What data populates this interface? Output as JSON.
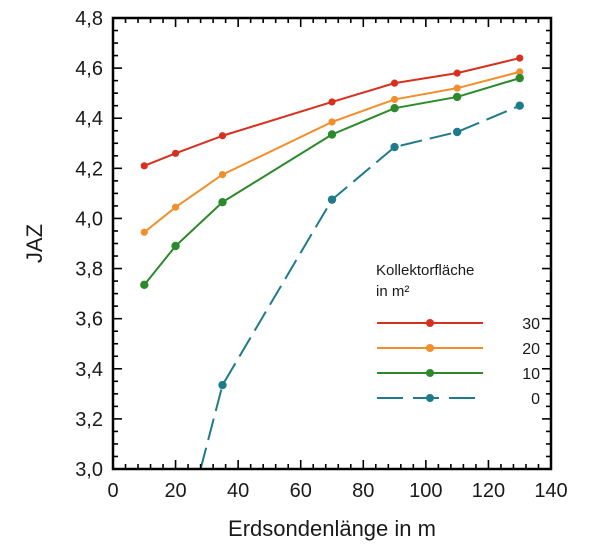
{
  "chart_data": {
    "type": "line",
    "xlabel": "Erdsondenlänge in m",
    "ylabel": "JAZ",
    "xlim": [
      0,
      140
    ],
    "ylim": [
      3.0,
      4.8
    ],
    "x_ticks": [
      0,
      20,
      40,
      60,
      80,
      100,
      120,
      140
    ],
    "x_tick_labels": [
      "0",
      "20",
      "40",
      "60",
      "80",
      "100",
      "120",
      "140"
    ],
    "y_ticks": [
      3.0,
      3.2,
      3.4,
      3.6,
      3.8,
      4.0,
      4.2,
      4.4,
      4.6,
      4.8
    ],
    "y_tick_labels": [
      "3,0",
      "3,2",
      "3,4",
      "3,6",
      "3,8",
      "4,0",
      "4,2",
      "4,4",
      "4,6",
      "4,8"
    ],
    "grid": false,
    "legend": {
      "title_line1": "Kollektorfläche",
      "title_line2": "in m²",
      "placement": "bottom-right"
    },
    "series": [
      {
        "name": "30",
        "color": "#d7301f",
        "style": "solid",
        "x": [
          10,
          20,
          35,
          70,
          90,
          110,
          130
        ],
        "y": [
          4.21,
          4.26,
          4.33,
          4.465,
          4.54,
          4.58,
          4.64
        ]
      },
      {
        "name": "20",
        "color": "#f28e2b",
        "style": "solid",
        "x": [
          10,
          20,
          35,
          70,
          90,
          110,
          130
        ],
        "y": [
          3.945,
          4.045,
          4.175,
          4.385,
          4.475,
          4.52,
          4.585
        ]
      },
      {
        "name": "10",
        "color": "#2c8a2c",
        "style": "solid",
        "x": [
          10,
          20,
          35,
          70,
          90,
          110,
          130
        ],
        "y": [
          3.735,
          3.89,
          4.065,
          4.335,
          4.44,
          4.485,
          4.56
        ]
      },
      {
        "name": "0",
        "color": "#1f7a8c",
        "style": "dashed",
        "x": [
          28,
          35,
          70,
          90,
          110,
          130
        ],
        "y": [
          3.0,
          3.335,
          4.075,
          4.285,
          4.345,
          4.45
        ],
        "markers": [
          false,
          true,
          true,
          true,
          true,
          true
        ]
      }
    ]
  }
}
